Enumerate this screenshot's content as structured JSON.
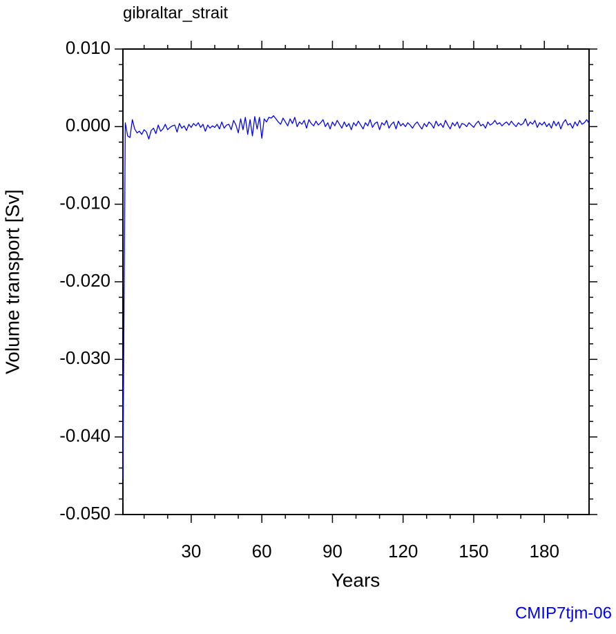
{
  "chart_data": {
    "type": "line",
    "title": "gibraltar_strait",
    "xlabel": "Years",
    "ylabel": "Volume transport [Sv]",
    "watermark": "CMIP7tjm-06",
    "xlim": [
      1,
      199
    ],
    "ylim": [
      -0.05,
      0.01
    ],
    "xticks": [
      30,
      60,
      90,
      120,
      150,
      180
    ],
    "xminorticks": [
      10,
      20,
      40,
      50,
      70,
      80,
      100,
      110,
      130,
      140,
      160,
      170,
      190
    ],
    "yticks": [
      {
        "value": -0.05,
        "label": "-0.050"
      },
      {
        "value": -0.04,
        "label": "-0.040"
      },
      {
        "value": -0.03,
        "label": "-0.030"
      },
      {
        "value": -0.02,
        "label": "-0.020"
      },
      {
        "value": -0.01,
        "label": "-0.010"
      },
      {
        "value": 0,
        "label": "0.000"
      },
      {
        "value": 0.01,
        "label": "0.010"
      }
    ],
    "yminorticks": [
      -0.048,
      -0.046,
      -0.044,
      -0.042,
      -0.038,
      -0.036,
      -0.034,
      -0.032,
      -0.028,
      -0.026,
      -0.024,
      -0.022,
      -0.018,
      -0.016,
      -0.014,
      -0.012,
      -0.008,
      -0.006,
      -0.004,
      -0.002,
      0.002,
      0.004,
      0.006,
      0.008
    ],
    "x": [
      1,
      2,
      3,
      4,
      5,
      6,
      7,
      8,
      9,
      10,
      11,
      12,
      13,
      14,
      15,
      16,
      17,
      18,
      19,
      20,
      21,
      22,
      23,
      24,
      25,
      26,
      27,
      28,
      29,
      30,
      31,
      32,
      33,
      34,
      35,
      36,
      37,
      38,
      39,
      40,
      41,
      42,
      43,
      44,
      45,
      46,
      47,
      48,
      49,
      50,
      51,
      52,
      53,
      54,
      55,
      56,
      57,
      58,
      59,
      60,
      61,
      62,
      63,
      64,
      65,
      66,
      67,
      68,
      69,
      70,
      71,
      72,
      73,
      74,
      75,
      76,
      77,
      78,
      79,
      80,
      81,
      82,
      83,
      84,
      85,
      86,
      87,
      88,
      89,
      90,
      91,
      92,
      93,
      94,
      95,
      96,
      97,
      98,
      99,
      100,
      101,
      102,
      103,
      104,
      105,
      106,
      107,
      108,
      109,
      110,
      111,
      112,
      113,
      114,
      115,
      116,
      117,
      118,
      119,
      120,
      121,
      122,
      123,
      124,
      125,
      126,
      127,
      128,
      129,
      130,
      131,
      132,
      133,
      134,
      135,
      136,
      137,
      138,
      139,
      140,
      141,
      142,
      143,
      144,
      145,
      146,
      147,
      148,
      149,
      150,
      151,
      152,
      153,
      154,
      155,
      156,
      157,
      158,
      159,
      160,
      161,
      162,
      163,
      164,
      165,
      166,
      167,
      168,
      169,
      170,
      171,
      172,
      173,
      174,
      175,
      176,
      177,
      178,
      179,
      180,
      181,
      182,
      183,
      184,
      185,
      186,
      187,
      188,
      189,
      190,
      191,
      192,
      193,
      194,
      195,
      196,
      197,
      198,
      199
    ],
    "series": [
      {
        "color": "#0000ff",
        "values": [
          -0.0455,
          0.0005,
          -0.0012,
          -0.0014,
          0.0009,
          -0.0003,
          -0.0008,
          -0.0006,
          -0.001,
          -0.0004,
          -0.0007,
          -0.0016,
          -0.0005,
          -0.0002,
          -0.0009,
          0.0002,
          -0.0006,
          -0.0003,
          0.0003,
          -0.0004,
          -0.0001,
          0.0001,
          0.0002,
          -0.0007,
          0.0004,
          -0.0002,
          0.0001,
          -0.0005,
          0.0003,
          -0.0001,
          0.0004,
          0.0001,
          0.0005,
          -0.0001,
          0.0003,
          -0.0006,
          0.0002,
          -0.0002,
          0.0001,
          -0.0001,
          0.0003,
          -0.0003,
          0.0006,
          -0.0002,
          0.0002,
          0.0003,
          -0.0004,
          0.0008,
          0.0002,
          -0.0008,
          0.001,
          -0.0004,
          0.0012,
          -0.001,
          0.0009,
          -0.0012,
          0.0013,
          -0.0003,
          0.0012,
          -0.0015,
          0.001,
          0.0006,
          0.0012,
          0.0011,
          0.0014,
          0.001,
          0.0006,
          0.0003,
          0.0011,
          0.0006,
          0.0001,
          0.001,
          0.0004,
          0.0012,
          0.0,
          0.0006,
          0.0003,
          0.0008,
          -0.0002,
          0.0009,
          0.0004,
          0.0001,
          0.0007,
          0.0002,
          0.0005,
          0.0009,
          0.0,
          0.0005,
          -0.0003,
          0.0006,
          0.0001,
          0.0008,
          0.0003,
          -0.0002,
          0.0006,
          0.0,
          0.0004,
          -0.0004,
          0.0005,
          0.0001,
          0.0007,
          0.0002,
          -0.0003,
          0.0005,
          0.0001,
          0.0009,
          -0.0001,
          0.0004,
          0.0006,
          -0.0004,
          0.0005,
          0.0002,
          0.0008,
          -0.0002,
          0.0003,
          0.0006,
          -0.0003,
          0.0007,
          0.0001,
          0.0004,
          0.0,
          0.0005,
          0.0002,
          -0.0002,
          0.0003,
          0.0006,
          0.0001,
          -0.0003,
          0.0004,
          0.0,
          0.0006,
          0.0003,
          -0.0002,
          0.0007,
          0.0001,
          0.0004,
          -0.0001,
          0.0008,
          0.0002,
          -0.0003,
          0.0005,
          0.0001,
          0.0006,
          -0.0002,
          0.0004,
          0.0003,
          0.0,
          0.0005,
          0.0002,
          -0.0001,
          0.0004,
          0.0007,
          0.0001,
          0.0003,
          -0.0002,
          0.0006,
          0.0002,
          0.0004,
          0.0008,
          0.0003,
          0.0005,
          0.0001,
          0.0004,
          0.0006,
          0.0002,
          0.0007,
          0.0003,
          0.0,
          0.0005,
          0.0002,
          0.0004,
          0.001,
          0.0001,
          0.0006,
          0.0003,
          0.0008,
          -0.0001,
          0.0005,
          0.0002,
          0.0006,
          0.0,
          0.0004,
          -0.0002,
          0.0007,
          0.0001,
          0.0006,
          -0.0003,
          0.0005,
          0.0009,
          0.0002,
          0.0004,
          -0.0002,
          0.0006,
          0.0001,
          0.0008,
          0.0003,
          0.0005,
          0.0009,
          0.0004
        ]
      }
    ]
  }
}
